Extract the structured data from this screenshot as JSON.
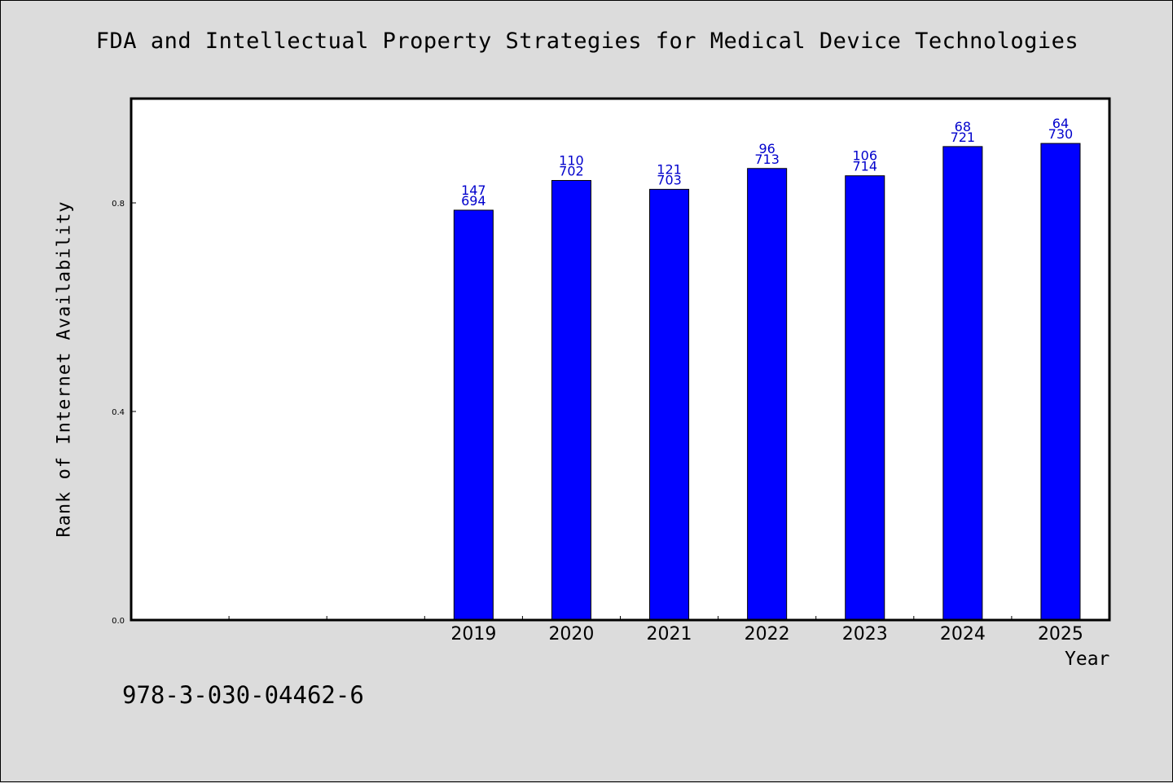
{
  "page": {
    "title": "FDA and Intellectual Property Strategies for Medical Device Technologies",
    "footer_text": "978-3-030-04462-6"
  },
  "colors": {
    "background": "#dcdcdc",
    "plot_background": "#ffffff",
    "bar_fill": "#0000ff",
    "label_color": "#0000cc"
  },
  "chart_data": {
    "type": "bar",
    "title": "FDA and Intellectual Property Strategies for Medical Device Technologies",
    "xlabel": "Year",
    "ylabel": "Rank of Internet Availability",
    "categories": [
      "",
      "",
      "",
      "2019",
      "2020",
      "2021",
      "2022",
      "2023",
      "2024",
      "2025"
    ],
    "values": [
      null,
      null,
      null,
      0.786,
      0.843,
      0.826,
      0.866,
      0.852,
      0.908,
      0.914
    ],
    "label_top": [
      "",
      "",
      "",
      "147",
      "110",
      "121",
      "96",
      "106",
      "68",
      "64"
    ],
    "label_bottom": [
      "",
      "",
      "",
      "694",
      "702",
      "703",
      "713",
      "714",
      "721",
      "730"
    ],
    "ylim": [
      0,
      1.0
    ],
    "yticks": [
      0.0,
      0.4,
      0.8
    ],
    "ytick_labels": [
      "0.0",
      "0.4",
      "0.8"
    ],
    "grid": false,
    "legend": "none"
  }
}
